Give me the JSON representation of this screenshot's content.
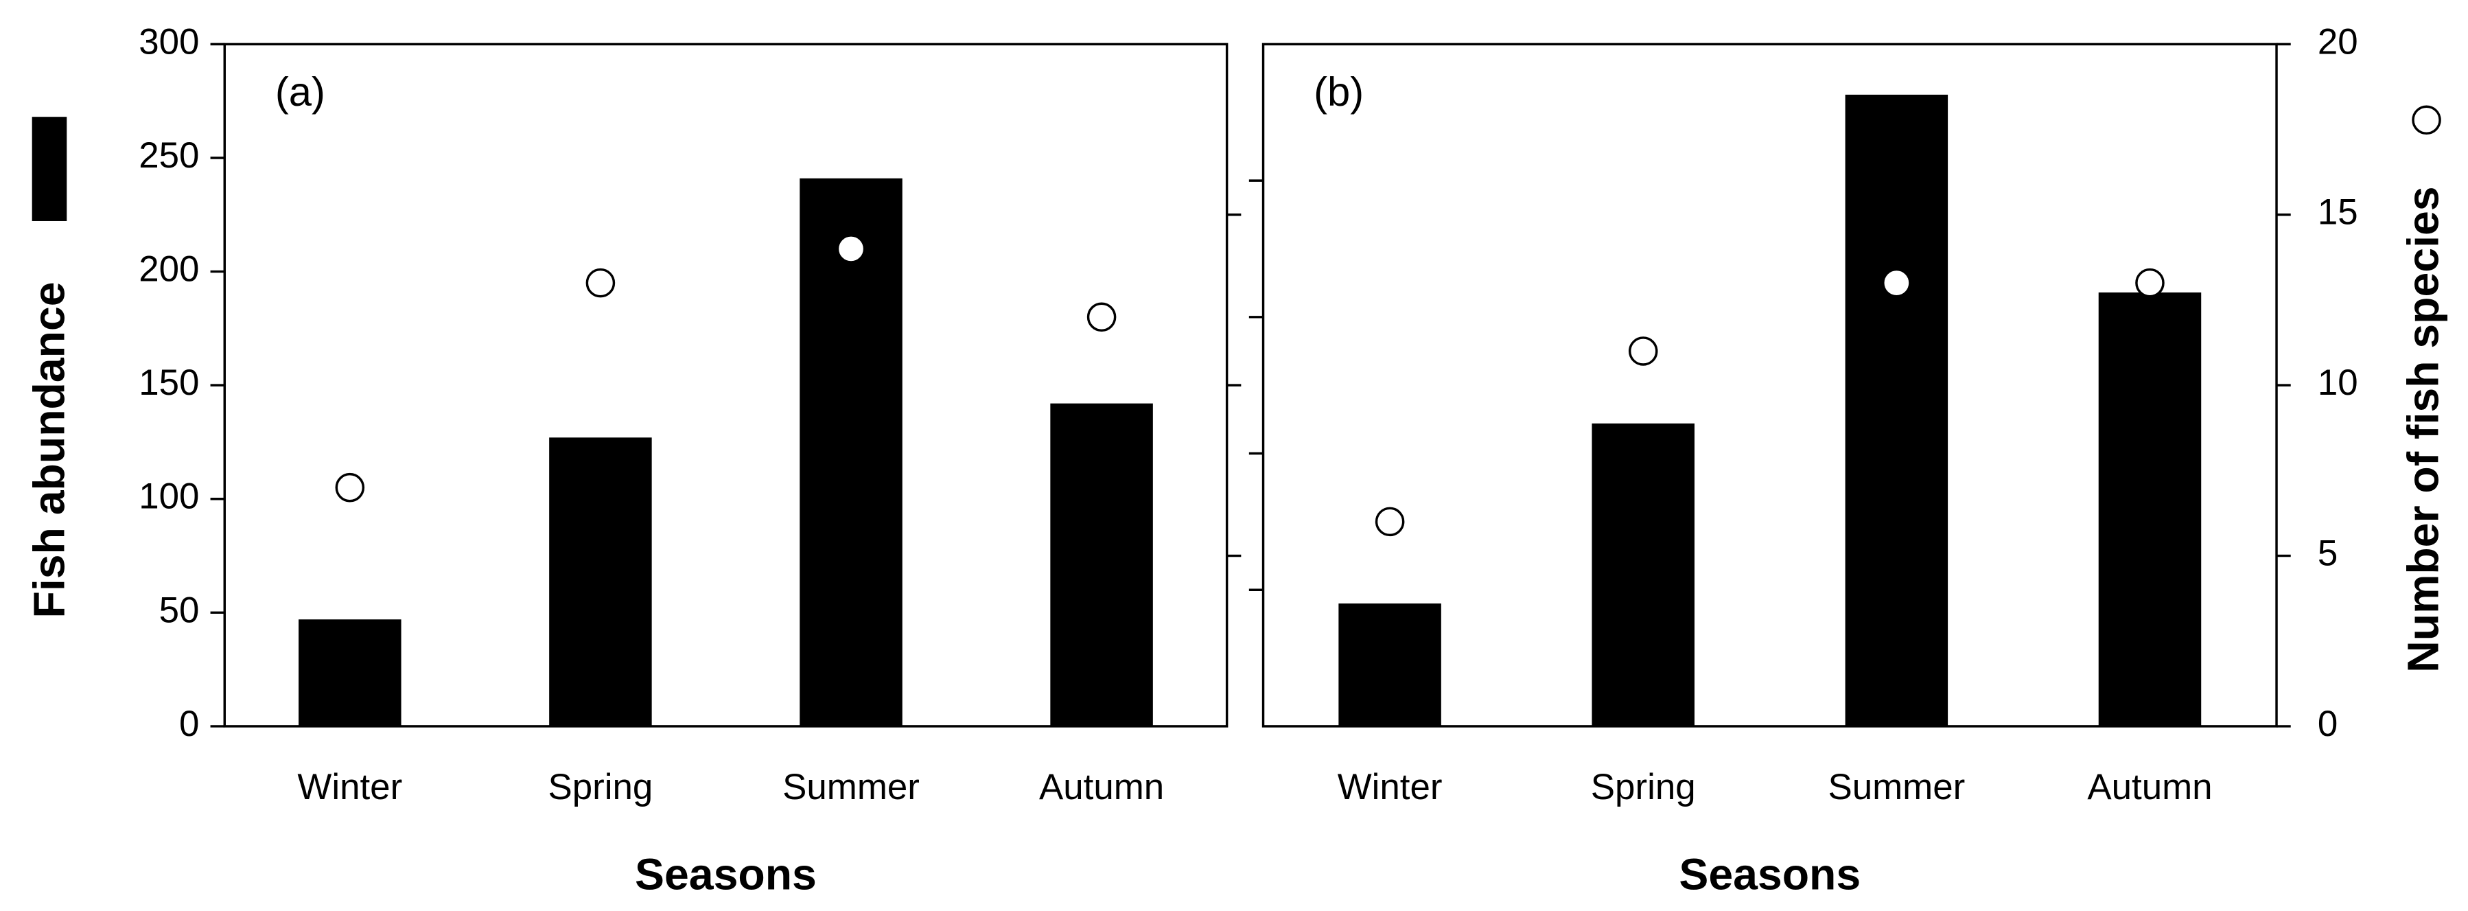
{
  "chart_data": [
    {
      "type": "bar",
      "panel_label": "(a)",
      "xlabel": "Seasons",
      "categories": [
        "Winter",
        "Spring",
        "Summer",
        "Autumn"
      ],
      "series": [
        {
          "name": "Fish abundance",
          "color": "#000000",
          "values": [
            47,
            127,
            241,
            142
          ]
        },
        {
          "type": "scatter",
          "axis": "y2",
          "color": "#ffffff",
          "values": [
            7,
            13,
            14,
            12
          ]
        }
      ],
      "ylim": [
        0,
        300
      ],
      "yticks": [
        0,
        50,
        100,
        150,
        200,
        250,
        300
      ],
      "ytick_labels": true,
      "y2lim": [
        0,
        20
      ],
      "y2ticks": [
        5,
        10,
        15
      ],
      "y2tick_labels": false
    },
    {
      "type": "bar",
      "panel_label": "(b)",
      "xlabel": "Seasons",
      "categories": [
        "Winter",
        "Spring",
        "Summer",
        "Autumn"
      ],
      "series": [
        {
          "color": "#000000",
          "values": [
            90,
            222,
            463,
            318
          ]
        },
        {
          "name": "Number of fish species",
          "type": "scatter",
          "axis": "y2",
          "color": "#ffffff",
          "values": [
            6,
            11,
            13,
            13
          ]
        }
      ],
      "ylim": [
        0,
        500
      ],
      "yticks": [
        100,
        200,
        300,
        400
      ],
      "ytick_labels": false,
      "y2lim": [
        0,
        20
      ],
      "y2ticks": [
        0,
        5,
        10,
        15,
        20
      ],
      "y2tick_labels": true
    }
  ]
}
